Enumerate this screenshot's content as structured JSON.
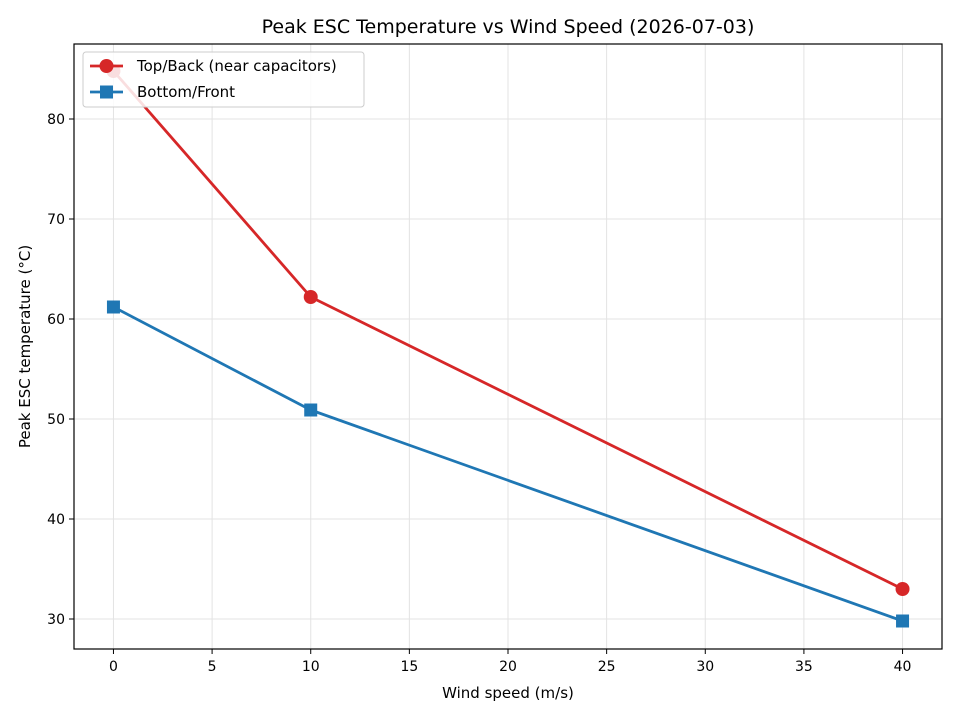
{
  "chart_data": {
    "type": "line",
    "title": "Peak ESC Temperature vs Wind Speed (2026-07-03)",
    "xlabel": "Wind speed (m/s)",
    "ylabel": "Peak ESC temperature (°C)",
    "xlim": [
      -2,
      42
    ],
    "ylim": [
      27,
      87.5
    ],
    "xticks": [
      0,
      5,
      10,
      15,
      20,
      25,
      30,
      35,
      40
    ],
    "yticks": [
      30,
      40,
      50,
      60,
      70,
      80
    ],
    "grid": true,
    "legend_position": "top-left",
    "series": [
      {
        "name": "Top/Back (near capacitors)",
        "color": "#d62728",
        "marker": "circle",
        "x": [
          0,
          10,
          40
        ],
        "y": [
          84.8,
          62.2,
          33.0
        ]
      },
      {
        "name": "Bottom/Front",
        "color": "#1f77b4",
        "marker": "square",
        "x": [
          0,
          10,
          40
        ],
        "y": [
          61.2,
          50.9,
          29.8
        ]
      }
    ]
  }
}
